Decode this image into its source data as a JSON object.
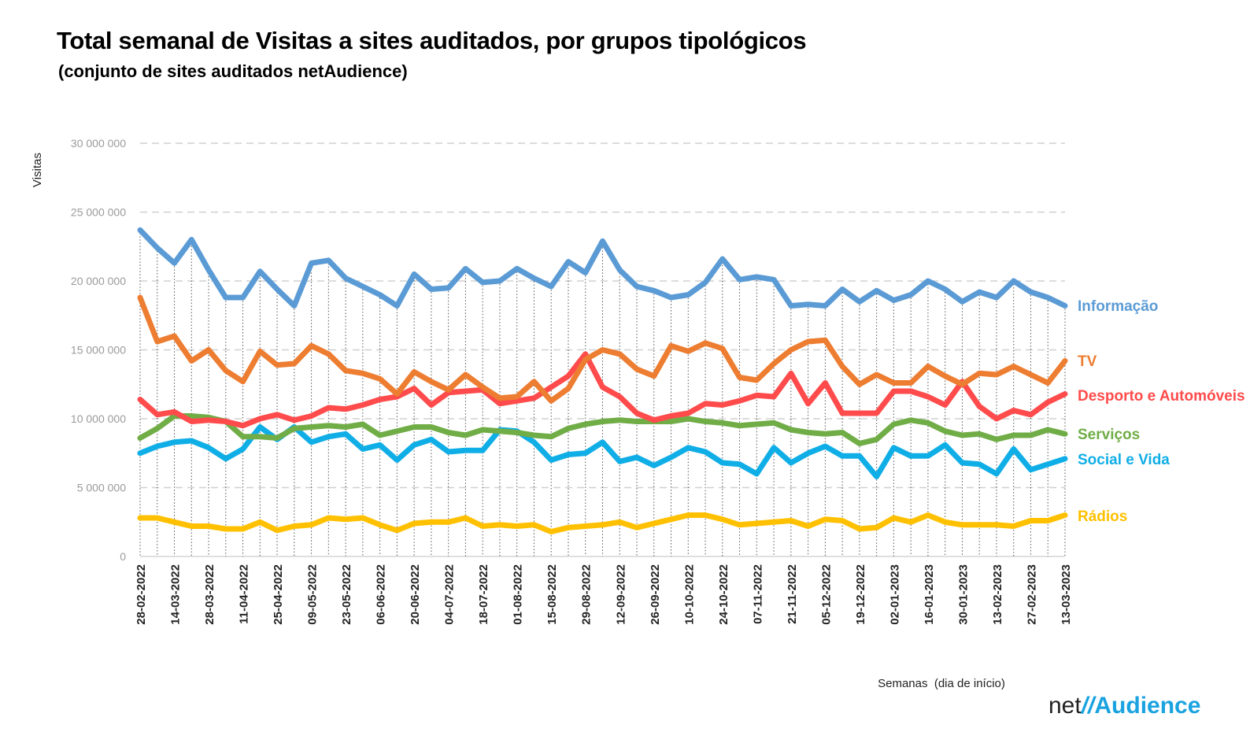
{
  "header": {
    "title": "Total semanal de Visitas a sites auditados, por grupos tipológicos",
    "subtitle": "(conjunto de sites auditados netAudience)"
  },
  "brand": {
    "net": "net",
    "slash": "//",
    "audience": "Audience"
  },
  "chart_data": {
    "type": "line",
    "ylabel": "Visitas",
    "xlabel": "Semanas  (dia de início)",
    "ylim": [
      0,
      30000000
    ],
    "yticks": [
      0,
      5000000,
      10000000,
      15000000,
      20000000,
      25000000,
      30000000
    ],
    "ytick_labels": [
      "0",
      "5 000 000",
      "10 000 000",
      "15 000 000",
      "20 000 000",
      "25 000 000",
      "30 000 000"
    ],
    "grid": "horizontal dashed; vertical dotted at every week",
    "legend": "direct labels at right end of lines",
    "x_dates": [
      "28-02-2022",
      "07-03-2022",
      "14-03-2022",
      "21-03-2022",
      "28-03-2022",
      "04-04-2022",
      "11-04-2022",
      "18-04-2022",
      "25-04-2022",
      "02-05-2022",
      "09-05-2022",
      "16-05-2022",
      "23-05-2022",
      "30-05-2022",
      "06-06-2022",
      "13-06-2022",
      "20-06-2022",
      "27-06-2022",
      "04-07-2022",
      "11-07-2022",
      "18-07-2022",
      "25-07-2022",
      "01-08-2022",
      "08-08-2022",
      "15-08-2022",
      "22-08-2022",
      "29-08-2022",
      "05-09-2022",
      "12-09-2022",
      "19-09-2022",
      "26-09-2022",
      "03-10-2022",
      "10-10-2022",
      "17-10-2022",
      "24-10-2022",
      "31-10-2022",
      "07-11-2022",
      "14-11-2022",
      "21-11-2022",
      "28-11-2022",
      "05-12-2022",
      "12-12-2022",
      "19-12-2022",
      "26-12-2022",
      "02-01-2023",
      "09-01-2023",
      "16-01-2023",
      "23-01-2023",
      "30-01-2023",
      "06-02-2023",
      "13-02-2023",
      "20-02-2023",
      "27-02-2023",
      "06-03-2023",
      "13-03-2023"
    ],
    "x_tick_labels": [
      "28-02-2022",
      "14-03-2022",
      "28-03-2022",
      "11-04-2022",
      "25-04-2022",
      "09-05-2022",
      "23-05-2022",
      "06-06-2022",
      "20-06-2022",
      "04-07-2022",
      "18-07-2022",
      "01-08-2022",
      "15-08-2022",
      "29-08-2022",
      "12-09-2022",
      "26-09-2022",
      "10-10-2022",
      "24-10-2022",
      "07-11-2022",
      "21-11-2022",
      "05-12-2022",
      "19-12-2022",
      "02-01-2023",
      "16-01-2023",
      "30-01-2023",
      "13-02-2023",
      "27-02-2023",
      "13-03-2023"
    ],
    "series": [
      {
        "name": "Informação",
        "color": "#5b9bd5",
        "values": [
          23700000,
          22400000,
          21300000,
          23000000,
          20800000,
          18800000,
          18800000,
          20700000,
          19400000,
          18200000,
          21300000,
          21500000,
          20200000,
          19600000,
          19000000,
          18200000,
          20500000,
          19400000,
          19500000,
          20900000,
          19900000,
          20000000,
          20900000,
          20200000,
          19600000,
          21400000,
          20600000,
          22900000,
          20800000,
          19600000,
          19300000,
          18800000,
          19000000,
          19900000,
          21600000,
          20100000,
          20300000,
          20100000,
          18200000,
          18300000,
          18200000,
          19400000,
          18500000,
          19300000,
          18600000,
          19000000,
          20000000,
          19400000,
          18500000,
          19200000,
          18800000,
          20000000,
          19200000,
          18800000,
          18200000
        ]
      },
      {
        "name": "TV",
        "color": "#ed7d31",
        "values": [
          18800000,
          15600000,
          16000000,
          14200000,
          15000000,
          13500000,
          12700000,
          14900000,
          13900000,
          14000000,
          15300000,
          14700000,
          13500000,
          13300000,
          12900000,
          11800000,
          13400000,
          12700000,
          12100000,
          13200000,
          12300000,
          11500000,
          11600000,
          12700000,
          11300000,
          12200000,
          14300000,
          15000000,
          14700000,
          13600000,
          13100000,
          15300000,
          14900000,
          15500000,
          15100000,
          13000000,
          12800000,
          14000000,
          15000000,
          15600000,
          15700000,
          13800000,
          12500000,
          13200000,
          12600000,
          12600000,
          13800000,
          13100000,
          12500000,
          13300000,
          13200000,
          13800000,
          13200000,
          12600000,
          14200000
        ]
      },
      {
        "name": "Desporto e Automóveis",
        "color": "#ff4b4b",
        "values": [
          11400000,
          10300000,
          10500000,
          9800000,
          9900000,
          9800000,
          9500000,
          10000000,
          10300000,
          9900000,
          10200000,
          10800000,
          10700000,
          11000000,
          11400000,
          11600000,
          12200000,
          11000000,
          11900000,
          12000000,
          12100000,
          11100000,
          11300000,
          11500000,
          12300000,
          13100000,
          14700000,
          12300000,
          11600000,
          10400000,
          9900000,
          10200000,
          10400000,
          11100000,
          11000000,
          11300000,
          11700000,
          11600000,
          13300000,
          11100000,
          12600000,
          10400000,
          10400000,
          10400000,
          12000000,
          12000000,
          11600000,
          11000000,
          12700000,
          10900000,
          10000000,
          10600000,
          10300000,
          11200000,
          11800000
        ]
      },
      {
        "name": "Serviços",
        "color": "#70ad47",
        "values": [
          8600000,
          9300000,
          10200000,
          10200000,
          10100000,
          9800000,
          8700000,
          8700000,
          8600000,
          9300000,
          9400000,
          9500000,
          9400000,
          9600000,
          8800000,
          9100000,
          9400000,
          9400000,
          9000000,
          8800000,
          9200000,
          9100000,
          9000000,
          8800000,
          8700000,
          9300000,
          9600000,
          9800000,
          9900000,
          9800000,
          9800000,
          9800000,
          10000000,
          9800000,
          9700000,
          9500000,
          9600000,
          9700000,
          9200000,
          9000000,
          8900000,
          9000000,
          8200000,
          8500000,
          9600000,
          9900000,
          9700000,
          9100000,
          8800000,
          8900000,
          8500000,
          8800000,
          8800000,
          9200000,
          8900000
        ]
      },
      {
        "name": "Social e Vida",
        "color": "#10aee6",
        "values": [
          7500000,
          8000000,
          8300000,
          8400000,
          7900000,
          7100000,
          7800000,
          9400000,
          8500000,
          9400000,
          8300000,
          8700000,
          8900000,
          7800000,
          8100000,
          7000000,
          8100000,
          8500000,
          7600000,
          7700000,
          7700000,
          9200000,
          9100000,
          8300000,
          7000000,
          7400000,
          7500000,
          8300000,
          6900000,
          7200000,
          6600000,
          7200000,
          7900000,
          7600000,
          6800000,
          6700000,
          6000000,
          7900000,
          6800000,
          7500000,
          8000000,
          7300000,
          7300000,
          5800000,
          7900000,
          7300000,
          7300000,
          8100000,
          6800000,
          6700000,
          6000000,
          7800000,
          6300000,
          6700000,
          7100000
        ]
      },
      {
        "name": "Rádios",
        "color": "#ffc000",
        "values": [
          2800000,
          2800000,
          2500000,
          2200000,
          2200000,
          2000000,
          2000000,
          2500000,
          1900000,
          2200000,
          2300000,
          2800000,
          2700000,
          2800000,
          2300000,
          1900000,
          2400000,
          2500000,
          2500000,
          2800000,
          2200000,
          2300000,
          2200000,
          2300000,
          1800000,
          2100000,
          2200000,
          2300000,
          2500000,
          2100000,
          2400000,
          2700000,
          3000000,
          3000000,
          2700000,
          2300000,
          2400000,
          2500000,
          2600000,
          2200000,
          2700000,
          2600000,
          2000000,
          2100000,
          2800000,
          2500000,
          3000000,
          2500000,
          2300000,
          2300000,
          2300000,
          2200000,
          2600000,
          2600000,
          3000000
        ]
      }
    ]
  }
}
